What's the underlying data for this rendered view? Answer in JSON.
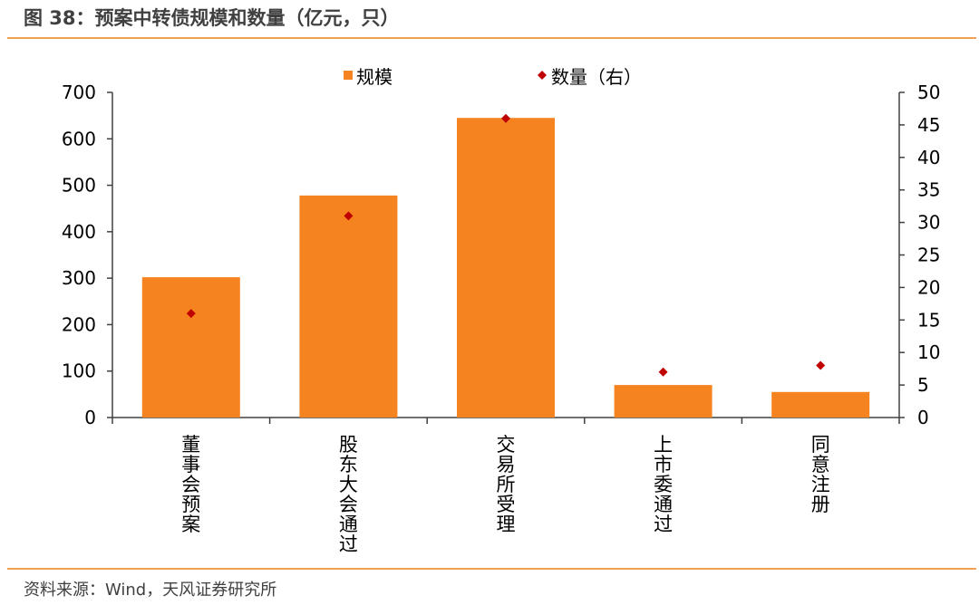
{
  "title": "图 38：预案中转债规模和数量（亿元，只）",
  "source": "资料来源：Wind，天风证券研究所",
  "colors": {
    "bar": "#f58320",
    "marker": "#c00000",
    "accent": "#f0a050",
    "axis": "#404040"
  },
  "chart_data": {
    "type": "bar",
    "title": "",
    "categories": [
      "董事会预案",
      "股东大会通过",
      "交易所受理",
      "上市委通过",
      "同意注册"
    ],
    "series": [
      {
        "name": "规模",
        "type": "bar",
        "axis": "left",
        "values": [
          302,
          478,
          645,
          70,
          55
        ]
      },
      {
        "name": "数量（右）",
        "type": "scatter",
        "axis": "right",
        "values": [
          16,
          31,
          46,
          7,
          8
        ]
      }
    ],
    "y_left": {
      "min": 0,
      "max": 700,
      "ticks": [
        0,
        100,
        200,
        300,
        400,
        500,
        600,
        700
      ]
    },
    "y_right": {
      "min": 0,
      "max": 50,
      "ticks": [
        0,
        5,
        10,
        15,
        20,
        25,
        30,
        35,
        40,
        45,
        50
      ]
    },
    "legend": {
      "position": "top",
      "entries": [
        "规模",
        "数量（右）"
      ]
    },
    "grid": false
  }
}
